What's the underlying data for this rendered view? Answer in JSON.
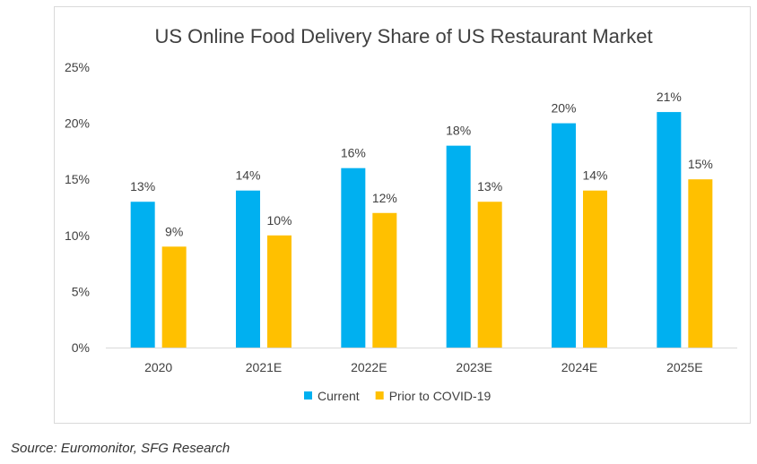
{
  "chart_data": {
    "type": "bar",
    "title": "US Online Food Delivery Share of US Restaurant Market",
    "xlabel": "",
    "ylabel": "",
    "categories": [
      "2020",
      "2021E",
      "2022E",
      "2023E",
      "2024E",
      "2025E"
    ],
    "series": [
      {
        "name": "Current",
        "color": "#00b0f0",
        "values": [
          13,
          14,
          16,
          18,
          20,
          21
        ],
        "labels": [
          "13%",
          "14%",
          "16%",
          "18%",
          "20%",
          "21%"
        ]
      },
      {
        "name": "Prior to COVID-19",
        "color": "#ffc000",
        "values": [
          9,
          10,
          12,
          13,
          14,
          15
        ],
        "labels": [
          "9%",
          "10%",
          "12%",
          "13%",
          "14%",
          "15%"
        ]
      }
    ],
    "ylim": [
      0,
      25
    ],
    "yticks": [
      0,
      5,
      10,
      15,
      20,
      25
    ],
    "ytick_labels": [
      "0%",
      "5%",
      "10%",
      "15%",
      "20%",
      "25%"
    ],
    "grid": false,
    "legend_position": "bottom-center"
  },
  "source_note": "Source: Euromonitor, SFG Research"
}
